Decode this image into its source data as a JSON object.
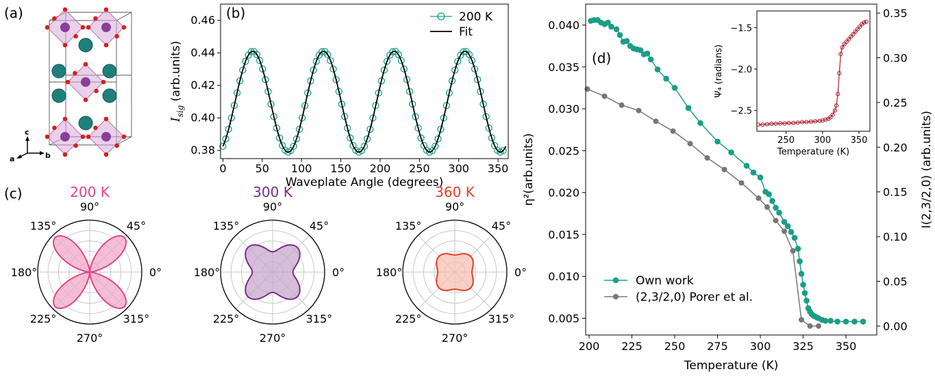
{
  "panel_labels": {
    "a": "(a)",
    "b": "(b)",
    "c": "(c)",
    "d": "(d)"
  },
  "crystal": {
    "axis_labels": {
      "c": "c",
      "a": "a",
      "b": "b"
    }
  },
  "colors": {
    "teal": "#1a9e85",
    "gray": "#777777",
    "dark_red": "#a81d2e",
    "pink": "#e0468c",
    "purple": "#7a2b8c",
    "red": "#e0402a"
  },
  "chart_data": [
    {
      "id": "b",
      "type": "line",
      "xlabel": "Waveplate Angle (degrees)",
      "ylabel": "I",
      "ylabel_sub": "sig",
      "ylabel_rest": " (arb.units)",
      "xlim": [
        -3,
        363
      ],
      "ylim": [
        0.375,
        0.47
      ],
      "xticks": [
        0,
        50,
        100,
        150,
        200,
        250,
        300,
        350
      ],
      "yticks": [
        0.38,
        0.4,
        0.42,
        0.44,
        0.46
      ],
      "ytick_labels": [
        "0.38",
        "0.40",
        "0.42",
        "0.44",
        "0.46"
      ],
      "model": {
        "offset": 0.41,
        "amplitude": 0.031,
        "period_deg": 90,
        "peak_deg": 38
      },
      "series": [
        {
          "name": "200 K",
          "style": "open-circles",
          "color": "#1a9e85"
        },
        {
          "name": "Fit",
          "style": "line",
          "color": "#000000"
        }
      ],
      "legend": "top-right"
    },
    {
      "id": "c",
      "type": "polar",
      "angle_labels": [
        "0°",
        "45°",
        "90°",
        "135°",
        "180°",
        "225°",
        "270°",
        "315°"
      ],
      "plots": [
        {
          "title": "200 K",
          "color": "#e0468c",
          "fill": "#f0a8c8",
          "mean": 0.46,
          "amp": 0.48
        },
        {
          "title": "300 K",
          "color": "#7a2b8c",
          "fill": "#c6a8cc",
          "mean": 0.53,
          "amp": 0.14
        },
        {
          "title": "360 K",
          "color": "#e0402a",
          "fill": "#f7c0b0",
          "mean": 0.38,
          "amp": 0.05
        }
      ]
    },
    {
      "id": "d",
      "type": "line",
      "xlabel": "Temperature (K)",
      "xlim": [
        198,
        368
      ],
      "ylim_left": [
        0.003,
        0.0425
      ],
      "ylim_right": [
        -0.01,
        0.36
      ],
      "xticks": [
        200,
        225,
        250,
        275,
        300,
        325,
        350
      ],
      "yticks_left": [
        0.005,
        0.01,
        0.015,
        0.02,
        0.025,
        0.03,
        0.035,
        0.04
      ],
      "ytick_labels_left": [
        "0.005",
        "0.010",
        "0.015",
        "0.020",
        "0.025",
        "0.030",
        "0.035",
        "0.040"
      ],
      "yticks_right": [
        0.0,
        0.05,
        0.1,
        0.15,
        0.2,
        0.25,
        0.3,
        0.35
      ],
      "ytick_labels_right": [
        "0.00",
        "0.05",
        "0.10",
        "0.15",
        "0.20",
        "0.25",
        "0.30",
        "0.35"
      ],
      "ylabel_left": "η²(arb.units)",
      "ylabel_right": "I(2,3/2,0) (arb.units)",
      "legend": "lower-left",
      "series": [
        {
          "name": "Own work",
          "axis": "left",
          "color": "#1a9e85",
          "x": [
            201,
            203,
            205,
            207,
            209,
            211,
            213,
            216,
            218,
            220,
            222,
            224,
            226,
            228,
            230,
            232,
            234,
            236,
            240,
            245,
            250,
            258,
            265,
            275,
            283,
            292,
            296,
            300,
            303,
            305,
            307,
            309,
            311,
            314,
            316,
            318,
            320,
            322,
            323,
            324,
            325,
            326,
            327,
            328,
            329,
            330,
            331,
            332,
            333,
            334,
            336,
            338,
            341,
            345,
            350,
            355,
            360
          ],
          "y": [
            0.0405,
            0.0406,
            0.0406,
            0.0403,
            0.0401,
            0.0403,
            0.0398,
            0.0395,
            0.0388,
            0.038,
            0.0381,
            0.0375,
            0.0372,
            0.0371,
            0.037,
            0.0365,
            0.0366,
            0.0359,
            0.0347,
            0.0336,
            0.0325,
            0.0301,
            0.0283,
            0.0261,
            0.0248,
            0.0232,
            0.0224,
            0.0218,
            0.0201,
            0.0198,
            0.019,
            0.0182,
            0.0176,
            0.0165,
            0.016,
            0.0153,
            0.0146,
            0.0133,
            0.0118,
            0.0103,
            0.009,
            0.008,
            0.0071,
            0.0062,
            0.0058,
            0.0055,
            0.0053,
            0.0052,
            0.0051,
            0.005,
            0.0048,
            0.0047,
            0.0047,
            0.0046,
            0.0046,
            0.0046,
            0.0046
          ]
        },
        {
          "name": "(2,3/2,0) Porer et al.",
          "axis": "right",
          "color": "#777777",
          "x": [
            199,
            209,
            219,
            229,
            239,
            249,
            259,
            269,
            279,
            289,
            299,
            304,
            309,
            314,
            319,
            324,
            329,
            334
          ],
          "y": [
            0.265,
            0.257,
            0.247,
            0.241,
            0.229,
            0.218,
            0.204,
            0.188,
            0.175,
            0.16,
            0.143,
            0.133,
            0.118,
            0.106,
            0.084,
            0.007,
            0.0,
            0.0
          ]
        }
      ],
      "inset": {
        "type": "line",
        "xlabel": "Temperature (K)",
        "ylabel": "Ψ₄ (radians)",
        "xlim": [
          210,
          365
        ],
        "ylim": [
          -2.75,
          -1.3
        ],
        "xticks": [
          250,
          300,
          350
        ],
        "yticks": [
          -1.5,
          -2.0,
          -2.5
        ],
        "ytick_labels": [
          "−1.5",
          "−2.0",
          "−2.5"
        ],
        "color": "#a81d2e",
        "x": [
          212,
          218,
          224,
          230,
          236,
          242,
          248,
          254,
          260,
          266,
          272,
          278,
          284,
          290,
          296,
          300,
          304,
          308,
          311,
          314,
          317,
          319,
          321,
          323,
          325,
          327,
          330,
          333,
          336,
          339,
          342,
          345,
          348,
          351,
          354,
          357,
          360
        ],
        "y": [
          -2.67,
          -2.67,
          -2.665,
          -2.66,
          -2.66,
          -2.655,
          -2.655,
          -2.65,
          -2.65,
          -2.645,
          -2.64,
          -2.64,
          -2.635,
          -2.63,
          -2.625,
          -2.62,
          -2.61,
          -2.6,
          -2.58,
          -2.55,
          -2.5,
          -2.44,
          -2.3,
          -2.05,
          -1.82,
          -1.74,
          -1.7,
          -1.67,
          -1.64,
          -1.61,
          -1.58,
          -1.55,
          -1.52,
          -1.49,
          -1.46,
          -1.44,
          -1.43
        ]
      }
    }
  ]
}
